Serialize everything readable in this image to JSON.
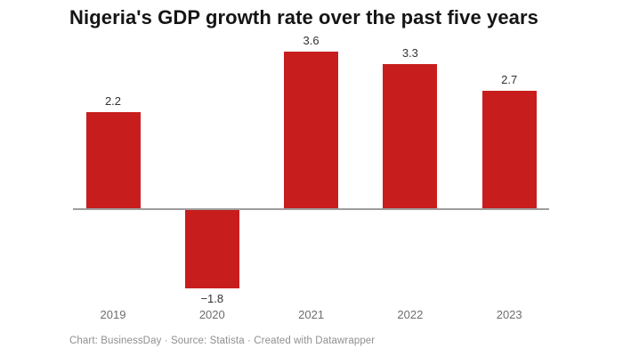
{
  "chart": {
    "footer": "Chart: BusinessDay · Source: Statista · Created with Datawrapper"
  },
  "chart_data": {
    "type": "bar",
    "title": "Nigeria's GDP growth rate over the past five years",
    "categories": [
      "2019",
      "2020",
      "2021",
      "2022",
      "2023"
    ],
    "values": [
      2.2,
      -1.8,
      3.6,
      3.3,
      2.7
    ],
    "value_labels": [
      "2.2",
      "−1.8",
      "3.6",
      "3.3",
      "2.7"
    ],
    "xlabel": "",
    "ylabel": "",
    "ylim": [
      -2.2,
      4
    ],
    "grid": false,
    "legend_position": "none",
    "bar_color": "#c71e1d",
    "value_label_color": "#333333",
    "axis_label_color": "#6e6e6e",
    "baseline_color": "#9d9d9d",
    "background_color": "#ffffff"
  }
}
